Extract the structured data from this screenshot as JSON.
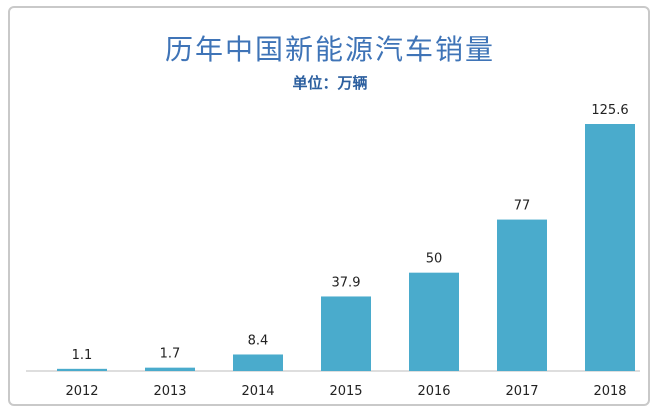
{
  "chart_data": {
    "type": "bar",
    "title": "历年中国新能源汽车销量",
    "subtitle": "单位：万辆",
    "categories": [
      "2012",
      "2013",
      "2014",
      "2015",
      "2016",
      "2017",
      "2018"
    ],
    "values": [
      1.1,
      1.7,
      8.4,
      37.9,
      50,
      77,
      125.6
    ],
    "value_labels": [
      "1.1",
      "1.7",
      "8.4",
      "37.9",
      "50",
      "77",
      "125.6"
    ],
    "ylim": [
      0,
      125.6
    ],
    "grid": false,
    "legend": "none",
    "colors": {
      "bar": "#4aabcc",
      "title": "#3f74b7",
      "subtitle": "#2c5f9f"
    }
  }
}
